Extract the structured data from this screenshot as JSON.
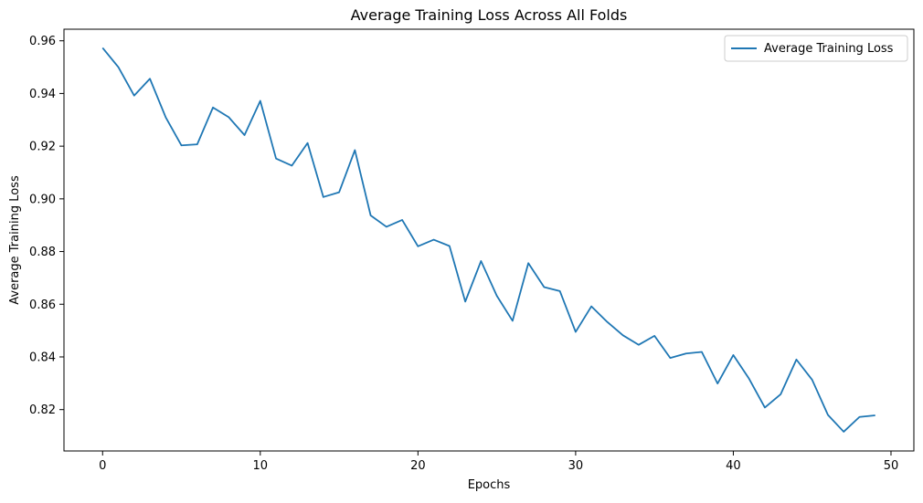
{
  "chart_data": {
    "type": "line",
    "title": "Average Training Loss Across All Folds",
    "xlabel": "Epochs",
    "ylabel": "Average Training Loss",
    "xlim": [
      -2.45,
      51.45
    ],
    "ylim": [
      0.8043,
      0.9644
    ],
    "xticks": [
      0,
      10,
      20,
      30,
      40,
      50
    ],
    "yticks": [
      0.82,
      0.84,
      0.86,
      0.88,
      0.9,
      0.92,
      0.94,
      0.96
    ],
    "legend_position": "top-right",
    "grid": false,
    "series": [
      {
        "name": "Average Training Loss",
        "color": "#1f77b4",
        "x": [
          0,
          1,
          2,
          3,
          4,
          5,
          6,
          7,
          8,
          9,
          10,
          11,
          12,
          13,
          14,
          15,
          16,
          17,
          18,
          19,
          20,
          21,
          22,
          23,
          24,
          25,
          26,
          27,
          28,
          29,
          30,
          31,
          32,
          33,
          34,
          35,
          36,
          37,
          38,
          39,
          40,
          41,
          42,
          43,
          44,
          45,
          46,
          47,
          48,
          49
        ],
        "y": [
          0.9573,
          0.95,
          0.9392,
          0.9456,
          0.931,
          0.9203,
          0.9207,
          0.9347,
          0.931,
          0.9242,
          0.9372,
          0.9153,
          0.9126,
          0.9212,
          0.9007,
          0.9025,
          0.9185,
          0.8937,
          0.8894,
          0.892,
          0.882,
          0.8845,
          0.8821,
          0.861,
          0.8764,
          0.8632,
          0.8537,
          0.8756,
          0.8665,
          0.865,
          0.8495,
          0.8592,
          0.8533,
          0.8482,
          0.8446,
          0.848,
          0.8396,
          0.8413,
          0.8419,
          0.8299,
          0.8407,
          0.8317,
          0.8208,
          0.8258,
          0.839,
          0.8313,
          0.818,
          0.8116,
          0.8172,
          0.8178
        ]
      }
    ]
  }
}
